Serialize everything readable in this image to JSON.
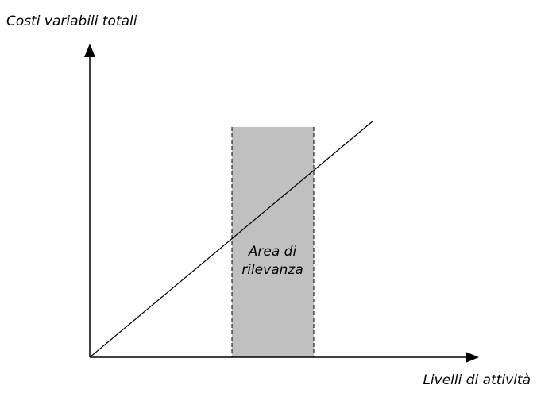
{
  "y_axis_label": "Costi variabili totali",
  "x_axis_label": "Livelli di attività",
  "region": {
    "lines": [
      "Area di",
      "rilevanza"
    ]
  }
}
